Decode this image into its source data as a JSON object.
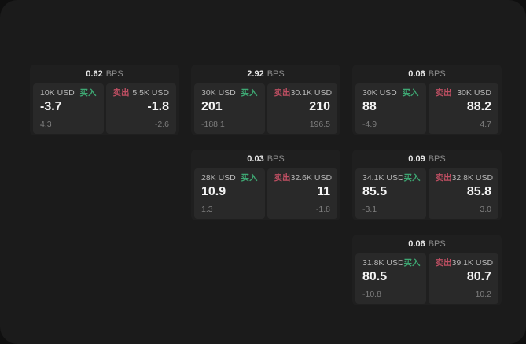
{
  "page": {
    "labels": {
      "bps_suffix": "BPS",
      "buy": "买入",
      "sell": "卖出"
    },
    "colors": {
      "outer_bg": "#0f0f0f",
      "screen_bg": "#1b1b1b",
      "card_bg": "#1f1f1f",
      "panel_bg": "#292929",
      "buy_green": "#3ea873",
      "sell_red": "#c04f63"
    }
  },
  "grid": {
    "col_starts": [
      38,
      243,
      448
    ],
    "row_starts": [
      82,
      190,
      298
    ]
  },
  "cards": [
    {
      "col": 0,
      "row": 0,
      "bps": "0.62",
      "buy": {
        "amount": "10K USD",
        "main": "-3.7",
        "sub": "4.3"
      },
      "sell": {
        "amount": "5.5K USD",
        "main": "-1.8",
        "sub": "-2.6"
      }
    },
    {
      "col": 1,
      "row": 0,
      "bps": "2.92",
      "buy": {
        "amount": "30K USD",
        "main": "201",
        "sub": "-188.1"
      },
      "sell": {
        "amount": "30.1K USD",
        "main": "210",
        "sub": "196.5"
      }
    },
    {
      "col": 2,
      "row": 0,
      "bps": "0.06",
      "buy": {
        "amount": "30K USD",
        "main": "88",
        "sub": "-4.9"
      },
      "sell": {
        "amount": "30K USD",
        "main": "88.2",
        "sub": "4.7"
      }
    },
    {
      "col": 1,
      "row": 1,
      "bps": "0.03",
      "buy": {
        "amount": "28K USD",
        "main": "10.9",
        "sub": "1.3"
      },
      "sell": {
        "amount": "32.6K USD",
        "main": "11",
        "sub": "-1.8"
      }
    },
    {
      "col": 2,
      "row": 1,
      "bps": "0.09",
      "buy": {
        "amount": "34.1K USD",
        "main": "85.5",
        "sub": "-3.1"
      },
      "sell": {
        "amount": "32.8K USD",
        "main": "85.8",
        "sub": "3.0"
      }
    },
    {
      "col": 2,
      "row": 2,
      "bps": "0.06",
      "buy": {
        "amount": "31.8K USD",
        "main": "80.5",
        "sub": "-10.8"
      },
      "sell": {
        "amount": "39.1K USD",
        "main": "80.7",
        "sub": "10.2"
      }
    }
  ]
}
